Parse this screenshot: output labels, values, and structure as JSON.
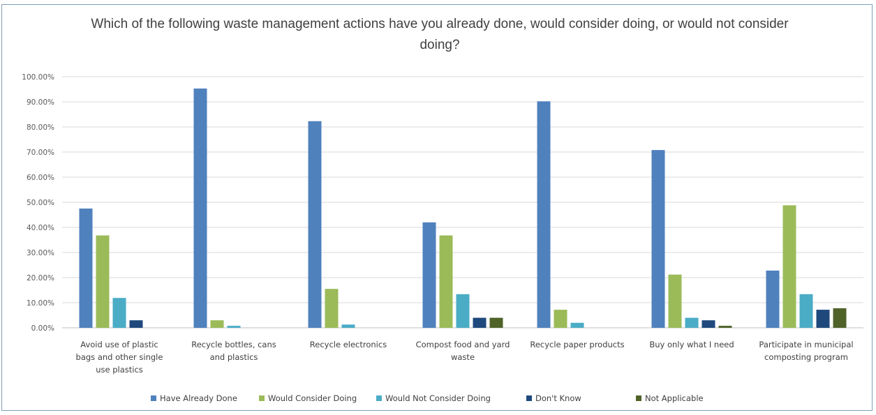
{
  "chart_data": {
    "type": "bar",
    "title": "Which of the following waste management actions have you already done, would consider doing, or would not consider doing?",
    "xlabel": "",
    "ylabel": "",
    "ylim": [
      0,
      100
    ],
    "y_ticks": [
      "0.00%",
      "10.00%",
      "20.00%",
      "30.00%",
      "40.00%",
      "50.00%",
      "60.00%",
      "70.00%",
      "80.00%",
      "90.00%",
      "100.00%"
    ],
    "grid": true,
    "legend_position": "bottom",
    "categories": [
      [
        "Avoid use of plastic",
        "bags and other single",
        "use plastics"
      ],
      [
        "Recycle bottles, cans",
        "and plastics"
      ],
      [
        "Recycle electronics"
      ],
      [
        "Compost food and yard",
        "waste"
      ],
      [
        "Recycle paper products"
      ],
      [
        "Buy only what I need"
      ],
      [
        "Participate in municipal",
        "composting program"
      ]
    ],
    "series": [
      {
        "name": "Have Already Done",
        "color": "#4f81bd",
        "values": [
          47.5,
          95.3,
          82.3,
          42.0,
          90.2,
          70.8,
          22.8
        ]
      },
      {
        "name": "Would Consider Doing",
        "color": "#9bbb59",
        "values": [
          36.8,
          3.0,
          15.5,
          36.8,
          7.2,
          21.2,
          48.8
        ]
      },
      {
        "name": "Would Not Consider Doing",
        "color": "#4bacc6",
        "values": [
          11.9,
          0.8,
          1.3,
          13.4,
          2.0,
          4.0,
          13.4
        ]
      },
      {
        "name": "Don't Know",
        "color": "#1f497d",
        "values": [
          3.0,
          0,
          0,
          4.0,
          0,
          3.0,
          7.2
        ]
      },
      {
        "name": "Not Applicable",
        "color": "#4f6228",
        "values": [
          0,
          0,
          0,
          4.0,
          0,
          0.8,
          7.8
        ]
      }
    ]
  }
}
